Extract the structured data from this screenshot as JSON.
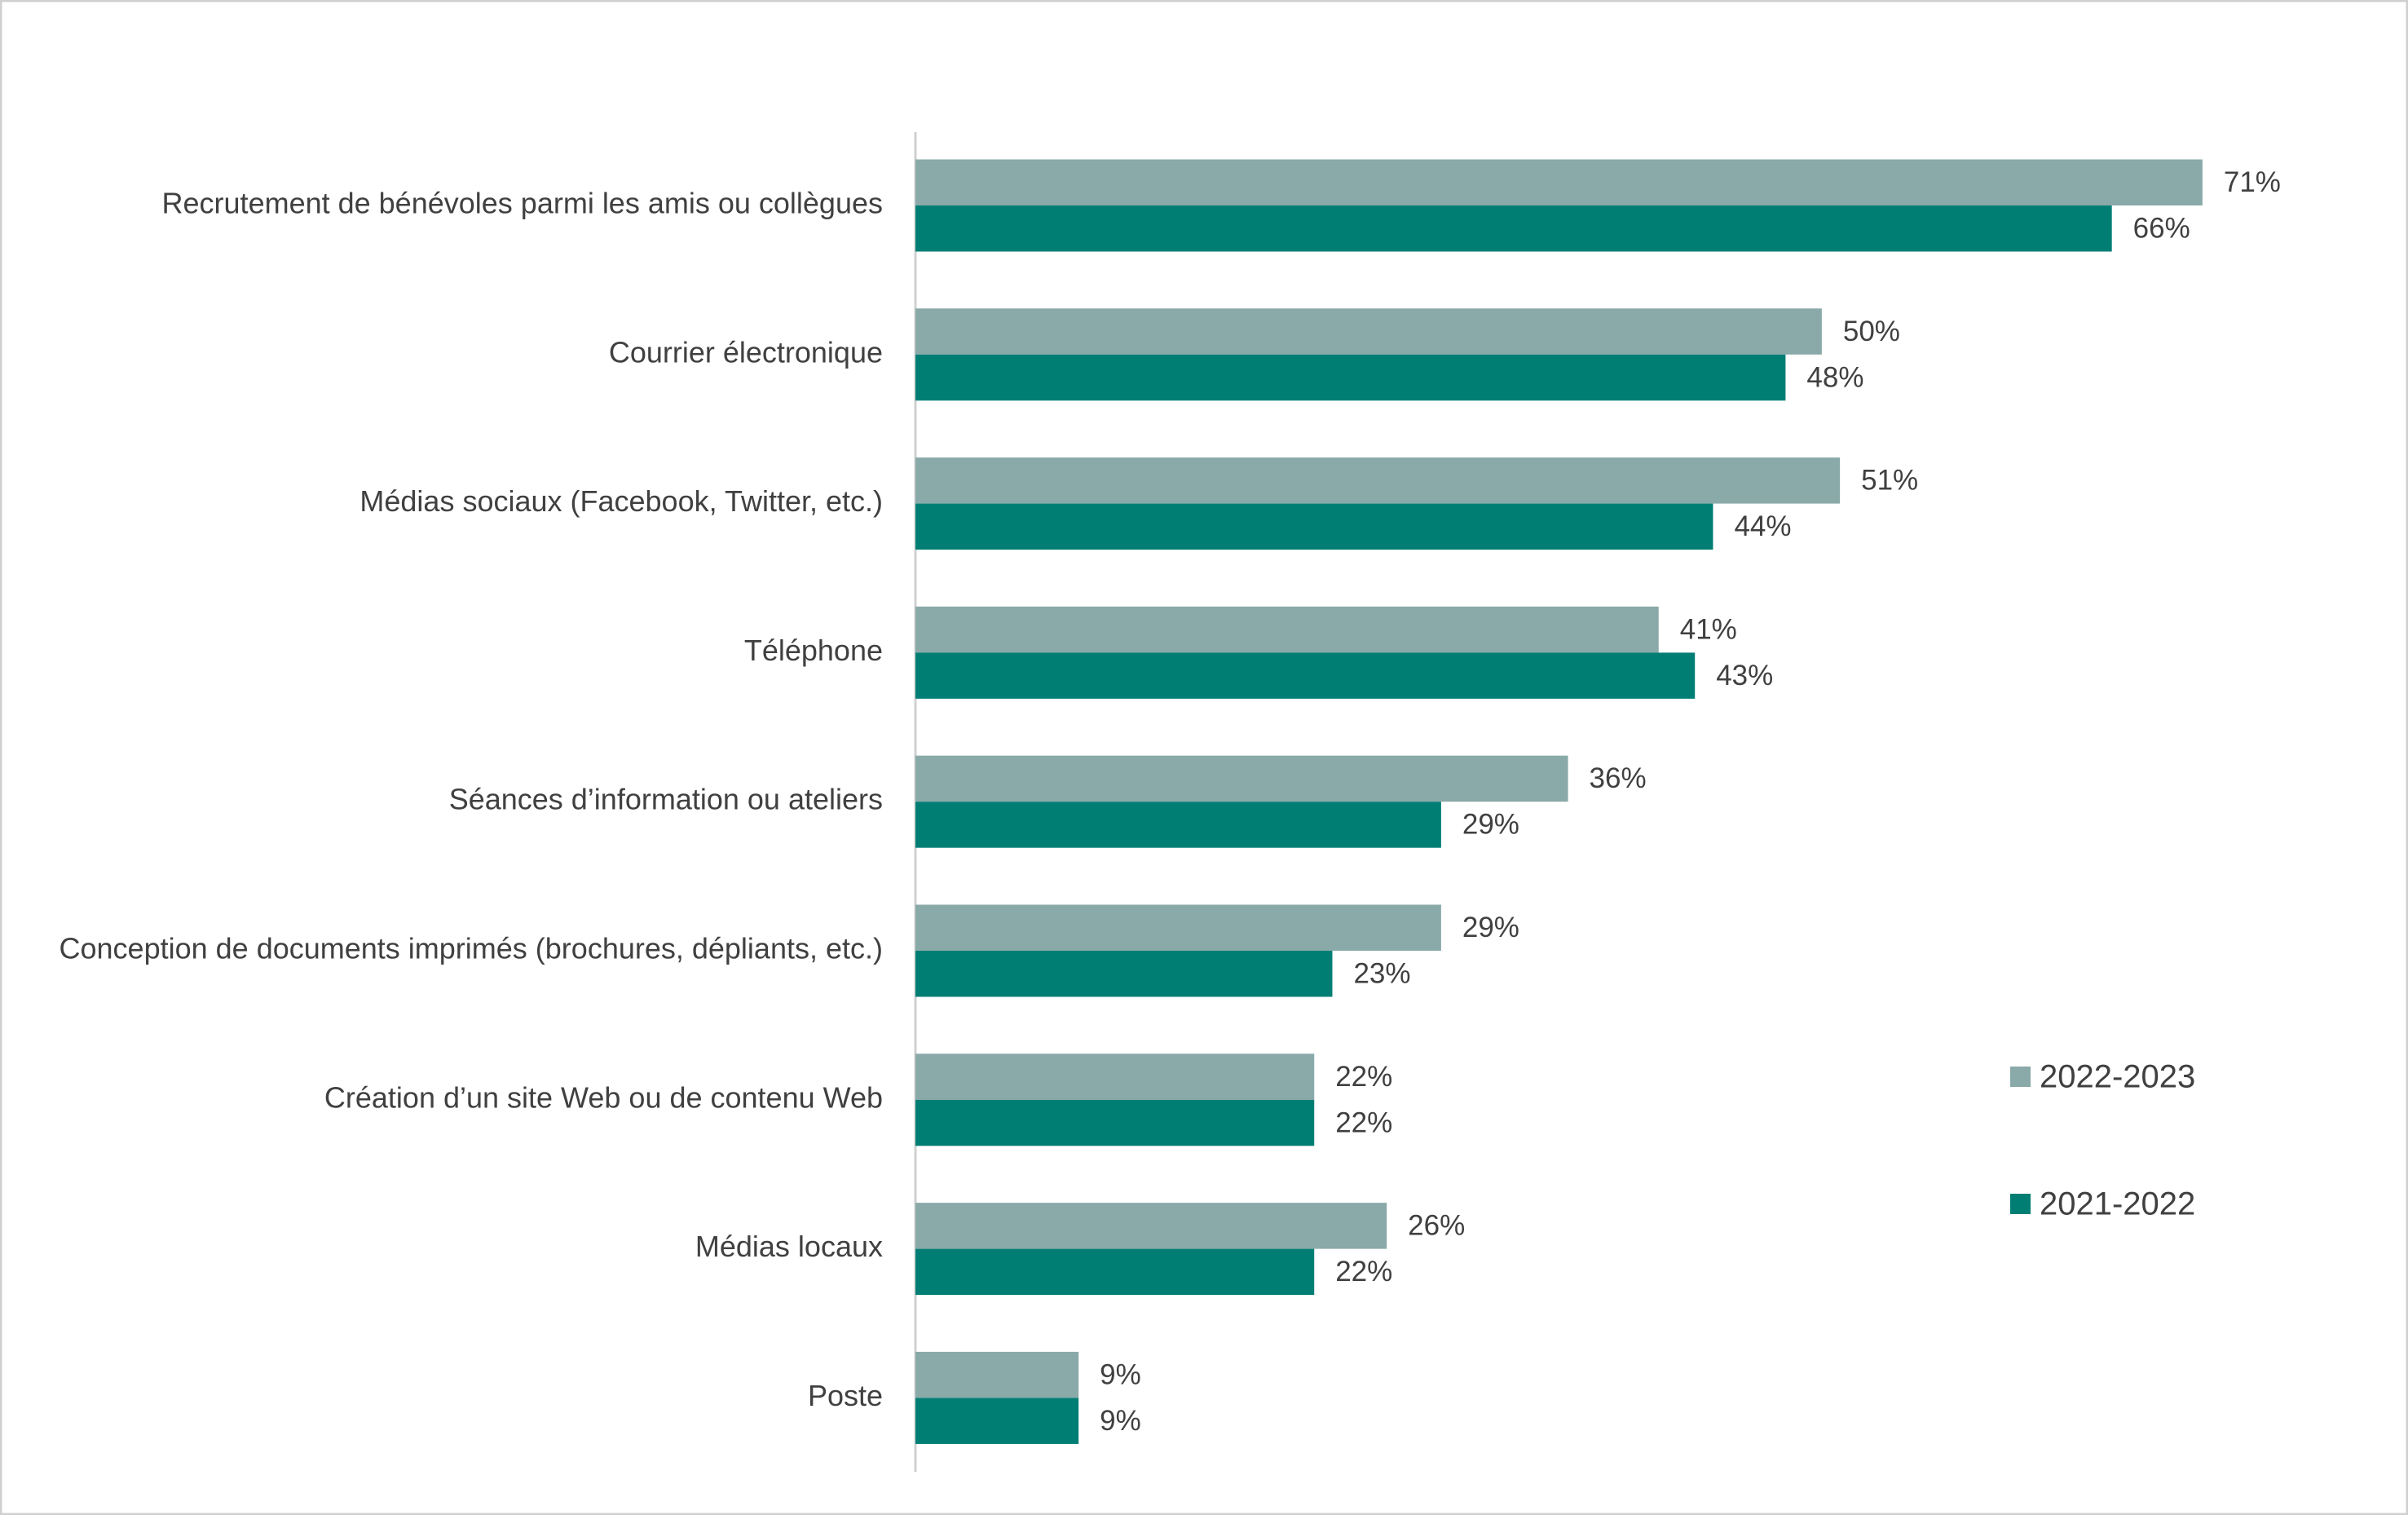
{
  "chart_data": {
    "type": "bar",
    "orientation": "horizontal",
    "categories": [
      "Recrutement de bénévoles parmi les amis ou collègues",
      "Courrier électronique",
      "Médias sociaux (Facebook, Twitter, etc.)",
      "Téléphone",
      "Séances d’information ou ateliers",
      "Conception de documents imprimés (brochures, dépliants, etc.)",
      "Création d’un site Web ou de contenu Web",
      "Médias locaux",
      "Poste"
    ],
    "series": [
      {
        "name": "2022-2023",
        "color": "#8aa9a9",
        "values": [
          71,
          50,
          51,
          41,
          36,
          29,
          22,
          26,
          9
        ],
        "value_labels": [
          "71%",
          "50%",
          "51%",
          "41%",
          "36%",
          "29%",
          "22%",
          "26%",
          "9%"
        ]
      },
      {
        "name": "2021-2022",
        "color": "#007e74",
        "values": [
          66,
          48,
          44,
          43,
          29,
          23,
          22,
          22,
          9
        ],
        "value_labels": [
          "66%",
          "48%",
          "44%",
          "43%",
          "29%",
          "23%",
          "22%",
          "22%",
          "9%"
        ]
      }
    ],
    "xlim": [
      0,
      80
    ],
    "grid": false,
    "legend_position": "right"
  }
}
